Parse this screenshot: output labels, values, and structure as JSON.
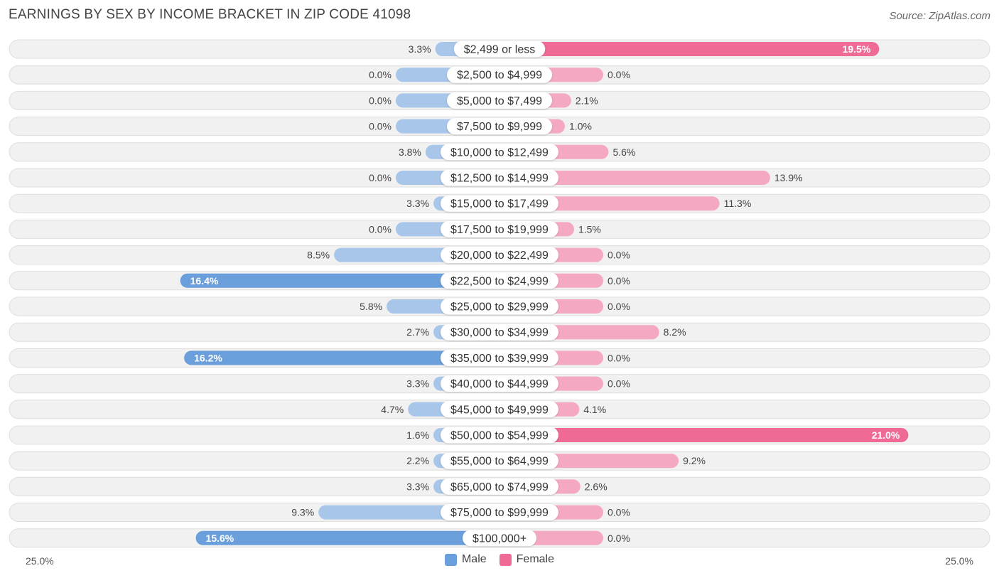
{
  "header": {
    "title": "EARNINGS BY SEX BY INCOME BRACKET IN ZIP CODE 41098",
    "source": "Source: ZipAtlas.com"
  },
  "colors": {
    "male_strong": "#6a9fdb",
    "male_light": "#a8c6ea",
    "female_strong": "#ef6b96",
    "female_light": "#f5a8c1",
    "row_bg": "#f1f1f1",
    "row_border": "#dedede"
  },
  "chart_data": {
    "type": "bar",
    "orientation": "horizontal-diverging",
    "title": "EARNINGS BY SEX BY INCOME BRACKET IN ZIP CODE 41098",
    "categories": [
      "$2,499 or less",
      "$2,500 to $4,999",
      "$5,000 to $7,499",
      "$7,500 to $9,999",
      "$10,000 to $12,499",
      "$12,500 to $14,999",
      "$15,000 to $17,499",
      "$17,500 to $19,999",
      "$20,000 to $22,499",
      "$22,500 to $24,999",
      "$25,000 to $29,999",
      "$30,000 to $34,999",
      "$35,000 to $39,999",
      "$40,000 to $44,999",
      "$45,000 to $49,999",
      "$50,000 to $54,999",
      "$55,000 to $64,999",
      "$65,000 to $74,999",
      "$75,000 to $99,999",
      "$100,000+"
    ],
    "series": [
      {
        "name": "Male",
        "values": [
          3.3,
          0.0,
          0.0,
          0.0,
          3.8,
          0.0,
          3.3,
          0.0,
          8.5,
          16.4,
          5.8,
          2.7,
          16.2,
          3.3,
          4.7,
          1.6,
          2.2,
          3.3,
          9.3,
          15.6
        ],
        "labels": [
          "3.3%",
          "0.0%",
          "0.0%",
          "0.0%",
          "3.8%",
          "0.0%",
          "3.3%",
          "0.0%",
          "8.5%",
          "16.4%",
          "5.8%",
          "2.7%",
          "16.2%",
          "3.3%",
          "4.7%",
          "1.6%",
          "2.2%",
          "3.3%",
          "9.3%",
          "15.6%"
        ]
      },
      {
        "name": "Female",
        "values": [
          19.5,
          0.0,
          2.1,
          1.0,
          5.6,
          13.9,
          11.3,
          1.5,
          0.0,
          0.0,
          0.0,
          8.2,
          0.0,
          0.0,
          4.1,
          21.0,
          9.2,
          2.6,
          0.0,
          0.0
        ],
        "labels": [
          "19.5%",
          "0.0%",
          "2.1%",
          "1.0%",
          "5.6%",
          "13.9%",
          "11.3%",
          "1.5%",
          "0.0%",
          "0.0%",
          "0.0%",
          "8.2%",
          "0.0%",
          "0.0%",
          "4.1%",
          "21.0%",
          "9.2%",
          "2.6%",
          "0.0%",
          "0.0%"
        ]
      }
    ],
    "axis": {
      "min": 0,
      "max": 25.0,
      "left_label": "25.0%",
      "right_label": "25.0%"
    },
    "legend": [
      "Male",
      "Female"
    ]
  }
}
